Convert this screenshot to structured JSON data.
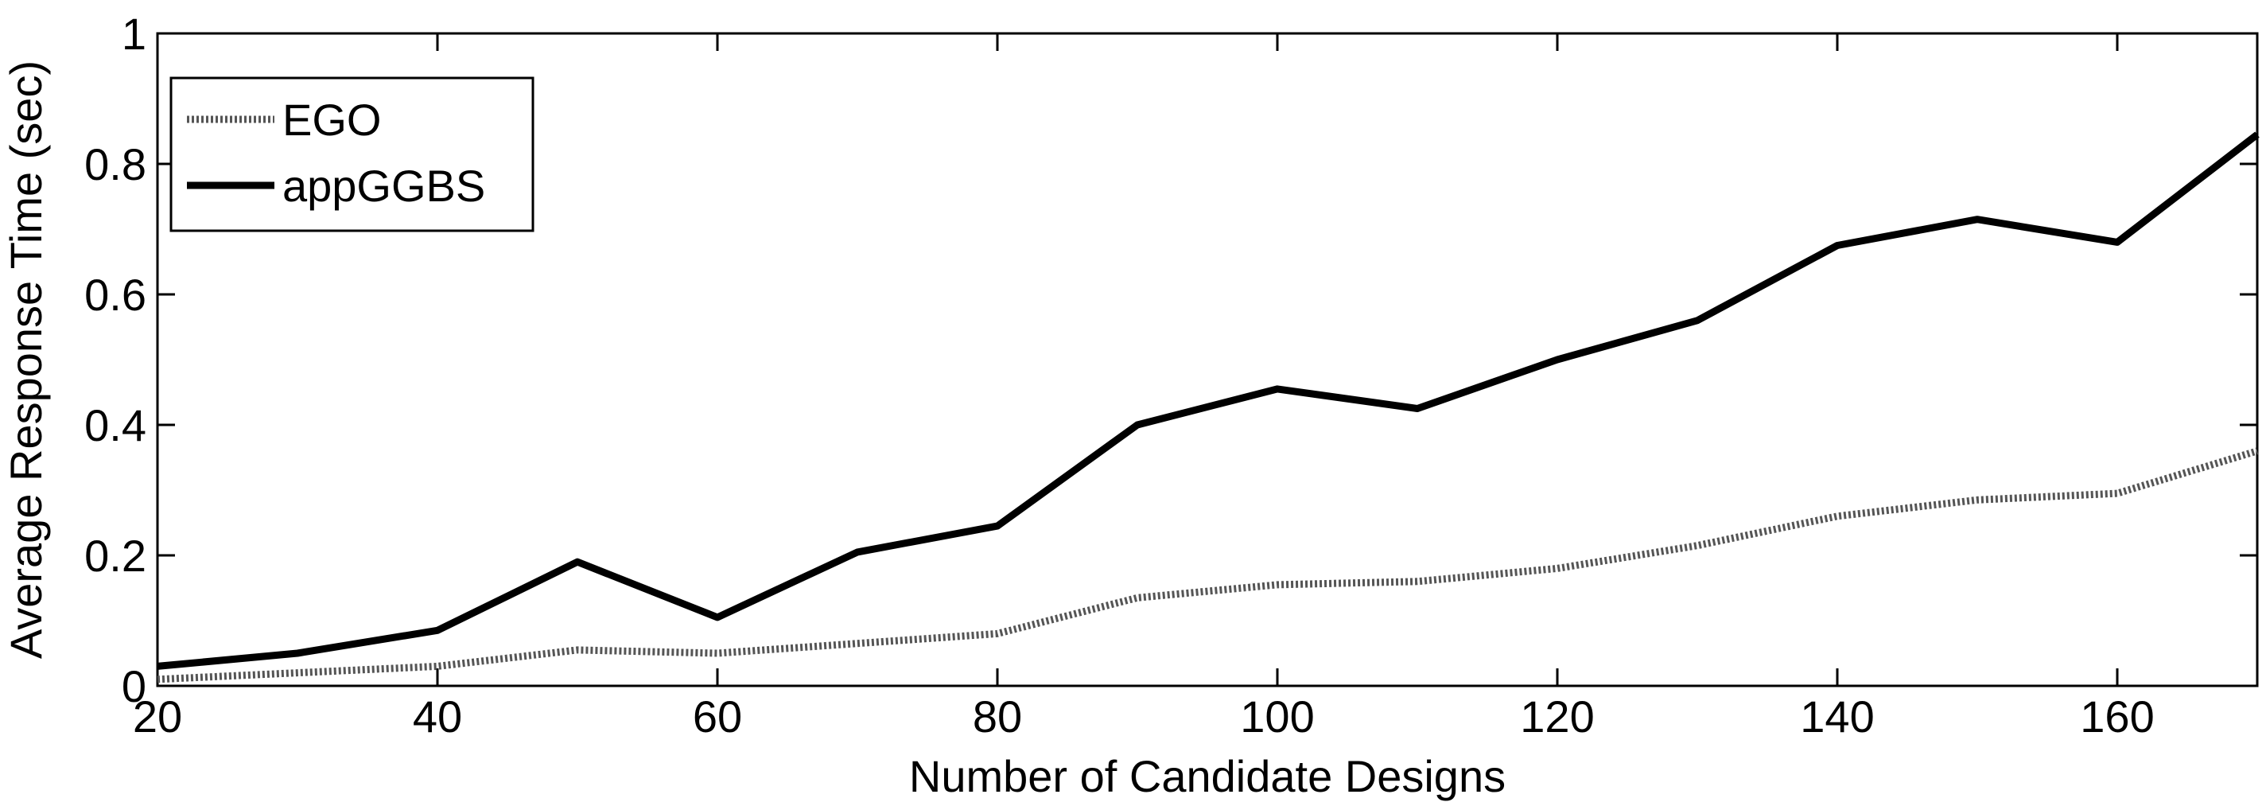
{
  "chart_data": {
    "type": "line",
    "title": "",
    "xlabel": "Number of Candidate Designs",
    "ylabel": "Average Response Time (sec)",
    "xlim": [
      20,
      170
    ],
    "ylim": [
      0,
      1
    ],
    "xticks": [
      20,
      40,
      60,
      80,
      100,
      120,
      140,
      160
    ],
    "yticks": [
      0,
      0.2,
      0.4,
      0.6,
      0.8,
      1
    ],
    "ytick_labels": [
      "0",
      "0.2",
      "0.4",
      "0.6",
      "0.8",
      "1"
    ],
    "grid": false,
    "legend_position": "top-left",
    "x": [
      20,
      30,
      40,
      50,
      60,
      70,
      80,
      90,
      100,
      110,
      120,
      130,
      140,
      150,
      160,
      170
    ],
    "series": [
      {
        "name": "EGO",
        "style": "dotted",
        "color": "#555555",
        "values": [
          0.01,
          0.02,
          0.03,
          0.055,
          0.05,
          0.065,
          0.08,
          0.135,
          0.155,
          0.16,
          0.18,
          0.215,
          0.26,
          0.285,
          0.295,
          0.36
        ]
      },
      {
        "name": "appGGBS",
        "style": "solid",
        "color": "#000000",
        "values": [
          0.03,
          0.05,
          0.085,
          0.19,
          0.105,
          0.205,
          0.245,
          0.4,
          0.455,
          0.425,
          0.5,
          0.56,
          0.675,
          0.715,
          0.68,
          0.845
        ]
      }
    ]
  }
}
